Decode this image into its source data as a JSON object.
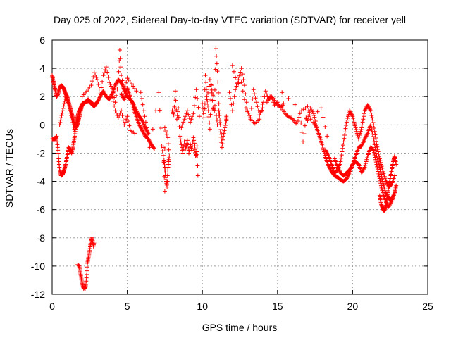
{
  "chart_data": {
    "type": "scatter",
    "title": "Day 025 of 2022, Sidereal Day-to-day VTEC variation (SDTVAR) for receiver yell",
    "xlabel": "GPS time / hours",
    "ylabel": "SDTVAR / TECUs",
    "xlim": [
      0,
      25
    ],
    "ylim": [
      -12,
      6
    ],
    "xticks": [
      0,
      5,
      10,
      15,
      20,
      25
    ],
    "yticks": [
      -12,
      -10,
      -8,
      -6,
      -4,
      -2,
      0,
      2,
      4,
      6
    ],
    "grid": true,
    "marker": "+",
    "colors": {
      "series": "#ff0000",
      "grid": "#a0a0a0",
      "axis": "#000000",
      "background": "#ffffff"
    },
    "series": [
      {
        "name": "SDTVAR",
        "tracks": [
          {
            "x": [
              0.0,
              0.1,
              0.2,
              0.3,
              0.4,
              0.5,
              0.6,
              0.7,
              0.8,
              0.9,
              1.0,
              1.1,
              1.2,
              1.3,
              1.4,
              1.5,
              1.6,
              1.7,
              1.8,
              1.9,
              2.0,
              2.2,
              2.4,
              2.6,
              2.8,
              3.0,
              3.2,
              3.4,
              3.6,
              3.8,
              4.0,
              4.2,
              4.4,
              4.6,
              4.8,
              5.0,
              5.2,
              5.4,
              5.6,
              5.8,
              6.0,
              6.2,
              6.4
            ],
            "y": [
              3.5,
              3.0,
              2.5,
              2.0,
              2.2,
              2.6,
              2.8,
              2.7,
              2.5,
              2.2,
              2.0,
              1.6,
              1.2,
              0.8,
              0.4,
              0.0,
              -0.2,
              0.1,
              0.5,
              1.0,
              1.4,
              1.6,
              1.8,
              1.5,
              1.3,
              1.6,
              2.0,
              2.4,
              2.0,
              1.8,
              2.2,
              2.8,
              3.2,
              3.0,
              2.5,
              2.0,
              1.8,
              1.5,
              1.0,
              0.6,
              0.3,
              -0.2,
              -0.6
            ]
          },
          {
            "x": [
              0.0,
              0.1,
              0.2,
              0.3,
              0.4,
              0.5,
              0.6,
              0.7,
              0.8,
              0.9,
              1.0,
              1.1,
              1.2,
              1.3,
              1.4,
              1.5,
              1.6,
              1.7,
              1.8,
              1.9,
              2.0,
              2.2,
              2.4,
              2.6,
              2.8,
              3.0
            ],
            "y": [
              -1.0,
              -1.0,
              -1.0,
              -0.8,
              -2.0,
              -3.2,
              -3.6,
              -3.5,
              -3.2,
              -2.8,
              -2.2,
              -1.6,
              -1.8,
              -2.0,
              -1.5,
              -0.8,
              0.2,
              0.6,
              1.0,
              1.2,
              1.5,
              1.6,
              1.7,
              1.6,
              1.4,
              1.6
            ]
          },
          {
            "x": [
              0.5,
              0.7,
              0.9,
              1.1,
              1.3,
              1.5
            ],
            "y": [
              0.0,
              1.0,
              2.0,
              1.5,
              0.5,
              -0.5
            ]
          },
          {
            "x": [
              4.6,
              4.8,
              5.0,
              5.2,
              5.4,
              5.6,
              5.8,
              6.0,
              6.2,
              6.4,
              6.6,
              6.8
            ],
            "y": [
              2.2,
              1.8,
              2.6,
              2.0,
              1.2,
              0.6,
              0.0,
              -0.4,
              -0.8,
              -1.0,
              -1.4,
              -1.7
            ]
          }
        ],
        "points": [
          {
            "x": [
              1.7,
              1.8,
              1.85,
              1.9,
              1.95,
              2.0,
              2.05,
              2.1,
              2.15,
              2.2,
              2.25,
              2.3,
              2.35,
              2.4,
              2.45,
              2.5,
              2.55,
              2.6,
              2.65,
              2.7,
              2.75,
              2.8
            ],
            "y": [
              -9.9,
              -10.0,
              -10.3,
              -10.6,
              -10.9,
              -11.2,
              -11.4,
              -11.6,
              -11.5,
              -11.6,
              -11.3,
              -10.6,
              -9.8,
              -9.5,
              -9.2,
              -8.9,
              -8.5,
              -8.2,
              -8.0,
              -8.3,
              -8.6,
              -8.3
            ]
          },
          {
            "x": [
              2.0,
              2.3,
              2.6,
              2.8,
              3.0,
              3.2,
              3.4,
              3.6,
              3.8,
              4.0,
              4.2,
              4.4,
              4.5,
              4.6,
              4.8,
              5.0,
              5.3,
              5.6
            ],
            "y": [
              2.0,
              2.4,
              2.8,
              3.7,
              3.2,
              2.2,
              3.5,
              4.1,
              3.0,
              2.6,
              1.6,
              3.0,
              5.3,
              3.5,
              2.4,
              3.3,
              2.9,
              2.4
            ]
          },
          {
            "x": [
              4.0,
              4.2,
              4.4,
              4.6,
              4.8,
              5.0,
              5.2,
              5.5
            ],
            "y": [
              2.0,
              1.0,
              0.5,
              1.0,
              0.0,
              0.6,
              -0.4,
              -0.6
            ]
          },
          {
            "x": [
              5.9,
              6.1,
              6.3,
              6.5,
              7.1,
              7.3,
              7.45,
              7.5,
              7.55,
              7.6,
              7.65,
              7.7,
              7.75,
              7.8,
              7.7,
              7.5,
              7.5,
              7.4
            ],
            "y": [
              2.3,
              1.0,
              -0.2,
              -1.6,
              2.3,
              -1.5,
              -2.5,
              -3.0,
              -3.6,
              -4.0,
              -4.4,
              -3.2,
              -2.6,
              -2.2,
              -0.9,
              -0.2,
              -4.7,
              -1.6
            ]
          },
          {
            "x": [
              8.0,
              8.1,
              8.2,
              8.3,
              8.4,
              8.5,
              8.6,
              8.7,
              8.8,
              8.9,
              9.0,
              9.1,
              9.2,
              9.3,
              9.4,
              9.5,
              9.55,
              9.6,
              9.65,
              9.7
            ],
            "y": [
              1.0,
              0.7,
              2.4,
              0.4,
              1.2,
              -0.8,
              -1.4,
              -2.0,
              -1.2,
              -1.7,
              -1.1,
              -2.0,
              -1.4,
              -1.8,
              -0.9,
              -1.5,
              -2.2,
              -2.1,
              -1.5,
              -3.6
            ]
          },
          {
            "x": [
              8.6,
              8.8,
              9.0,
              9.2,
              9.4,
              9.6,
              9.8
            ],
            "y": [
              -0.2,
              0.4,
              1.0,
              0.2,
              0.8,
              2.5,
              0.6
            ]
          },
          {
            "x": [
              10.0,
              10.1,
              10.2,
              10.3,
              10.4,
              10.5,
              10.6,
              10.7,
              10.8,
              10.9,
              11.0,
              11.1,
              11.2,
              11.3,
              11.4,
              11.5,
              11.6,
              11.6
            ],
            "y": [
              1.5,
              0.5,
              3.5,
              2.0,
              1.0,
              -0.3,
              2.8,
              1.2,
              1.0,
              5.4,
              3.8,
              1.5,
              -0.5,
              -1.6,
              -0.8,
              -0.2,
              0.3,
              0.6
            ]
          },
          {
            "x": [
              10.1,
              10.3,
              10.5,
              10.7,
              10.9,
              11.0,
              11.1,
              11.2,
              11.3
            ],
            "y": [
              0.8,
              1.8,
              3.2,
              2.1,
              1.0,
              0.0,
              1.0,
              0.0,
              -1.0
            ]
          },
          {
            "x": [
              11.8,
              12.0,
              12.2,
              12.4,
              12.6,
              12.8,
              13.0,
              13.2,
              13.4,
              13.6,
              13.8,
              14.0,
              14.2,
              14.4,
              14.6,
              14.8,
              15.0,
              15.2,
              15.4
            ],
            "y": [
              2.3,
              1.0,
              2.5,
              3.2,
              4.0,
              2.8,
              1.0,
              0.5,
              2.5,
              1.6,
              0.7,
              1.2,
              2.4,
              1.8,
              2.0,
              1.4,
              1.6,
              1.2,
              1.5
            ]
          },
          {
            "x": [
              12.0,
              12.3,
              12.6,
              12.9,
              13.2,
              13.5,
              13.8,
              14.1
            ],
            "y": [
              4.2,
              2.9,
              3.0,
              1.2,
              0.4,
              0.1,
              0.4,
              2.0
            ]
          },
          {
            "x": [
              14.3,
              14.5,
              14.7,
              15.0,
              15.3,
              15.5,
              15.7,
              15.9,
              16.1,
              16.3,
              16.5,
              16.7,
              16.9,
              17.0,
              17.2,
              17.4,
              17.6
            ],
            "y": [
              1.6,
              2.0,
              1.9,
              1.4,
              1.2,
              0.8,
              0.6,
              0.5,
              0.3,
              0.0,
              0.8,
              -1.2,
              0.5,
              0.3,
              1.2,
              0.8,
              0.0
            ]
          },
          {
            "x": [
              15.3,
              16.6,
              17.0,
              17.2,
              17.9,
              18.3
            ],
            "y": [
              2.3,
              1.0,
              1.3,
              0.4,
              1.2,
              -0.8
            ]
          }
        ],
        "late_tracks": [
          {
            "x": [
              17.4,
              17.6,
              17.8,
              18.0,
              18.2,
              18.4,
              18.6,
              18.8,
              19.0,
              19.2,
              19.4,
              19.6,
              19.8,
              20.0,
              20.2,
              20.4,
              20.6,
              20.8,
              21.0,
              21.2,
              21.4,
              21.6,
              21.8,
              22.0,
              22.2,
              22.4,
              22.6,
              22.8
            ],
            "y": [
              0.2,
              -0.2,
              -0.8,
              -1.5,
              -2.3,
              -2.9,
              -3.3,
              -3.6,
              -3.7,
              -3.9,
              -4.0,
              -3.8,
              -3.4,
              -2.8,
              -2.2,
              -1.6,
              -1.5,
              -1.0,
              -0.6,
              0.0,
              -1.0,
              -2.2,
              -3.0,
              -4.0,
              -4.8,
              -5.2,
              -5.3,
              -4.8
            ]
          },
          {
            "x": [
              18.2,
              18.4,
              18.6,
              18.8,
              19.0,
              19.2,
              19.4,
              19.6,
              19.8,
              20.0,
              20.2,
              20.4,
              20.6,
              20.8,
              21.0,
              21.2,
              21.4,
              21.6,
              21.8,
              22.0,
              22.2,
              22.4,
              22.6,
              22.8
            ],
            "y": [
              -1.8,
              -2.2,
              -2.8,
              -3.4,
              -3.2,
              -2.6,
              -1.2,
              0.2,
              1.0,
              0.6,
              -0.2,
              -1.0,
              -0.2,
              1.0,
              1.4,
              1.0,
              0.0,
              -1.4,
              -2.4,
              -3.2,
              -3.9,
              -4.4,
              -4.2,
              -3.6
            ]
          },
          {
            "x": [
              18.8,
              19.0,
              19.2,
              19.4,
              19.6,
              19.8,
              20.0,
              20.2,
              20.4,
              20.6,
              20.8,
              21.0,
              21.2,
              21.4,
              21.6,
              21.8,
              22.0,
              22.2,
              22.4,
              22.6,
              22.8,
              22.9
            ],
            "y": [
              -2.4,
              -3.0,
              -3.4,
              -3.6,
              -3.4,
              -3.2,
              -2.8,
              -2.6,
              -2.8,
              -3.4,
              -3.0,
              -2.2,
              -1.6,
              -1.8,
              -2.8,
              -3.8,
              -4.8,
              -5.4,
              -5.8,
              -5.4,
              -4.8,
              -4.3
            ]
          },
          {
            "x": [
              21.8,
              21.9,
              22.0,
              22.1,
              22.2,
              22.3,
              22.4,
              22.5,
              22.6,
              22.7,
              22.8,
              22.9
            ],
            "y": [
              -5.0,
              -5.6,
              -5.9,
              -6.1,
              -5.8,
              -5.2,
              -4.4,
              -3.8,
              -3.2,
              -2.6,
              -2.2,
              -2.8
            ]
          }
        ]
      }
    ]
  }
}
